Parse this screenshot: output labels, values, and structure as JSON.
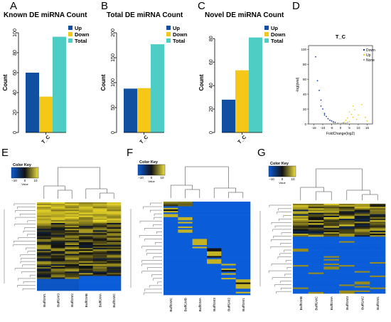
{
  "panels": {
    "A": {
      "letter": "A",
      "title": "Known DE miRNA Count"
    },
    "B": {
      "letter": "B",
      "title": "Total DE miRNA Count"
    },
    "C": {
      "letter": "C",
      "title": "Novel DE miRNA Count"
    },
    "D": {
      "letter": "D",
      "title": "T_C"
    },
    "E": {
      "letter": "E"
    },
    "F": {
      "letter": "F"
    },
    "G": {
      "letter": "G"
    }
  },
  "legend_bar": {
    "up": "Up",
    "down": "Down",
    "total": "Total"
  },
  "colors": {
    "up": "#1150a0",
    "down": "#f5c817",
    "total": "#4ecdc4",
    "heat_low": "#0a5cd8",
    "heat_mid": "#111111",
    "heat_high": "#f0e040"
  },
  "volcano_legend": {
    "down": "Down",
    "up": "Up",
    "none": "None"
  },
  "color_key": {
    "title": "Color Key",
    "t1": "−10",
    "t2": "0",
    "t3": "10",
    "value_label": "Value"
  },
  "heatmap_samples": {
    "E": [
      "BuffGM1",
      "BuffGM3",
      "BuffGM2",
      "BuffGMB",
      "BuffGMA",
      "BuffGMC"
    ],
    "F": [
      "BuffGMC",
      "BuffGMB",
      "BuffGMA",
      "BuffGM3",
      "BuffGM2",
      "BuffGM1"
    ],
    "G": [
      "BuffGMB",
      "BuffGMC",
      "BuffGMA",
      "BuffGM3",
      "BuffGM2",
      "BuffGM1"
    ]
  },
  "chart_data": [
    {
      "type": "bar",
      "title": "Known DE miRNA Count",
      "categories": [
        "T_C"
      ],
      "series": [
        {
          "name": "Up",
          "values": [
            60
          ]
        },
        {
          "name": "Down",
          "values": [
            36
          ]
        },
        {
          "name": "Total",
          "values": [
            96
          ]
        }
      ],
      "ylabel": "Count",
      "xlabel": "",
      "ylim": [
        0,
        100
      ],
      "yticks": [
        0,
        20,
        40,
        60,
        80,
        100
      ],
      "legend": "top-right"
    },
    {
      "type": "bar",
      "title": "Total DE miRNA Count",
      "categories": [
        "T_C"
      ],
      "series": [
        {
          "name": "Up",
          "values": [
            88
          ]
        },
        {
          "name": "Down",
          "values": [
            89
          ]
        },
        {
          "name": "Total",
          "values": [
            177
          ]
        }
      ],
      "ylabel": "Count",
      "xlabel": "",
      "ylim": [
        0,
        200
      ],
      "yticks": [
        0,
        50,
        100,
        150,
        200
      ],
      "legend": "top-right"
    },
    {
      "type": "bar",
      "title": "Novel DE miRNA Count",
      "categories": [
        "T_C"
      ],
      "series": [
        {
          "name": "Up",
          "values": [
            28
          ]
        },
        {
          "name": "Down",
          "values": [
            53
          ]
        },
        {
          "name": "Total",
          "values": [
            81
          ]
        }
      ],
      "ylabel": "Count",
      "xlabel": "",
      "ylim": [
        0,
        85
      ],
      "yticks": [
        0,
        20,
        40,
        60,
        80
      ],
      "legend": "top-right"
    },
    {
      "type": "scatter",
      "title": "T_C",
      "xlabel": "FoldChange(log2)",
      "ylabel": "-log(pval)",
      "xlim": [
        -18,
        18
      ],
      "ylim": [
        0,
        105
      ],
      "xticks": [
        -15,
        -10,
        -5,
        0,
        5,
        10,
        15
      ],
      "yticks": [
        0,
        20,
        40,
        60,
        80,
        100
      ],
      "series": [
        {
          "name": "Down",
          "points": [
            [
              -14,
              90
            ],
            [
              -13,
              58
            ],
            [
              -12,
              45
            ],
            [
              -11,
              32
            ],
            [
              -10,
              20
            ],
            [
              -9,
              14
            ],
            [
              -8,
              10
            ],
            [
              -7,
              7
            ],
            [
              -6,
              5
            ],
            [
              -5,
              4
            ],
            [
              -4,
              3
            ],
            [
              -3,
              2
            ],
            [
              -11,
              24
            ],
            [
              -9,
              12
            ]
          ]
        },
        {
          "name": "Up",
          "points": [
            [
              2,
              2
            ],
            [
              3,
              5
            ],
            [
              4,
              8
            ],
            [
              5,
              16
            ],
            [
              6,
              13
            ],
            [
              7,
              24
            ],
            [
              8,
              19
            ],
            [
              9,
              6
            ],
            [
              10,
              12
            ],
            [
              12,
              26
            ],
            [
              14,
              9
            ],
            [
              15,
              4
            ],
            [
              5,
              3
            ],
            [
              7,
              9
            ]
          ]
        },
        {
          "name": "None",
          "points": [
            [
              -2,
              0.5
            ],
            [
              -1,
              0.3
            ],
            [
              0,
              0.2
            ],
            [
              1,
              0.4
            ],
            [
              2,
              0.6
            ],
            [
              -3,
              1
            ],
            [
              3,
              1
            ],
            [
              -1.5,
              1.2
            ],
            [
              1.5,
              1.5
            ],
            [
              0.5,
              0.8
            ],
            [
              -0.5,
              0.6
            ],
            [
              4,
              2
            ],
            [
              -4,
              1.5
            ]
          ]
        }
      ],
      "legend": "top-right"
    }
  ]
}
